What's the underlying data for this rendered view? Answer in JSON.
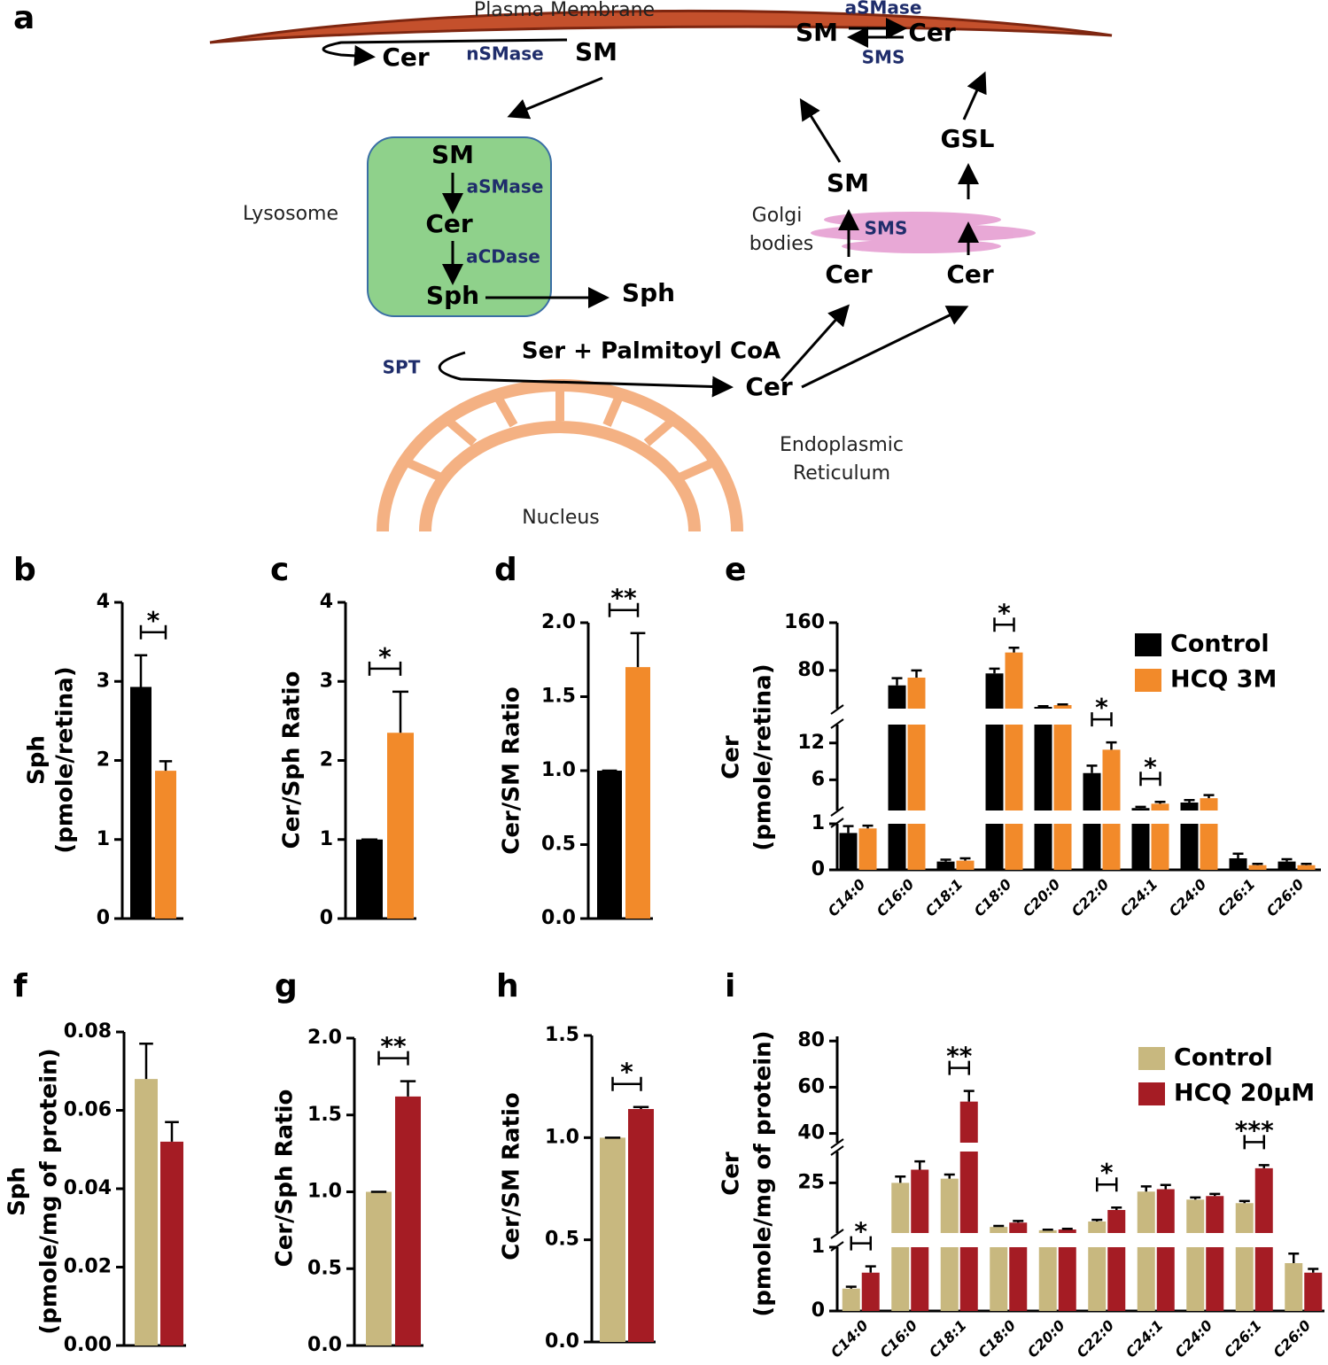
{
  "diagram": {
    "texts": [
      "a",
      "Plasma Membrane",
      "Cer",
      "nSMase",
      "SM",
      "aSMase",
      "SM",
      "Cer",
      "SMS",
      "SM",
      "aSMase",
      "Cer",
      "aCDase",
      "Sph",
      "Sph",
      "Lysosome",
      "GSL",
      "SM",
      "Golgi",
      "bodies",
      "SMS",
      "Cer",
      "Cer",
      "SPT",
      "Ser + Palmitoyl CoA",
      "Cer",
      "Endoplasmic",
      "Reticulum",
      "Nucleus"
    ]
  },
  "chart_data": [
    {
      "type": "bar",
      "panel": "b",
      "ylabel": [
        "Sph",
        "(pmole/retina)"
      ],
      "categories": [
        null,
        null
      ],
      "values": [
        2.93,
        1.87
      ],
      "errors": [
        0.4,
        0.12
      ],
      "colors": [
        "#000000",
        "#f28a2a"
      ],
      "ylim": [
        0,
        4
      ],
      "yticks": [
        0,
        1,
        2,
        3,
        4
      ],
      "significance": "*"
    },
    {
      "type": "bar",
      "panel": "c",
      "ylabel": [
        "Cer/Sph Ratio"
      ],
      "categories": [
        null,
        null
      ],
      "values": [
        1,
        2.35
      ],
      "errors": [
        0,
        0.52
      ],
      "colors": [
        "#000000",
        "#f28a2a"
      ],
      "ylim": [
        0,
        4
      ],
      "yticks": [
        0,
        1,
        2,
        3,
        4
      ],
      "significance": "*"
    },
    {
      "type": "bar",
      "panel": "d",
      "ylabel": [
        "Cer/SM Ratio"
      ],
      "categories": [
        null,
        null
      ],
      "values": [
        1,
        1.7
      ],
      "errors": [
        0,
        0.23
      ],
      "colors": [
        "#000000",
        "#f28a2a"
      ],
      "ylim": [
        0,
        2
      ],
      "yticks": [
        {
          "value": 0,
          "label": "0.0"
        },
        0.5,
        {
          "value": 1,
          "label": "1.0"
        },
        1.5,
        {
          "value": 2,
          "label": "2.0"
        }
      ],
      "significance": "**"
    },
    {
      "type": "bar",
      "panel": "e",
      "ylabel": [
        "Cer",
        "(pmole/retina)"
      ],
      "categories": [
        "C14:0",
        "C16:0",
        "C18:1",
        "C18:0",
        "C20:0",
        "C22:0",
        "C24:1",
        "C24:0",
        "C26:1",
        "C26:0"
      ],
      "series": [
        {
          "name": "Control",
          "color": "#000000",
          "values": [
            0.8,
            55,
            0.18,
            75,
            19,
            7.1,
            1.4,
            2.3,
            0.25,
            0.18
          ],
          "errors": [
            0.15,
            12,
            0.04,
            8,
            1,
            1.2,
            0.2,
            0.4,
            0.1,
            0.05
          ]
        },
        {
          "name": "HCQ 3M",
          "color": "#f28a2a",
          "values": [
            0.9,
            68,
            0.2,
            110,
            22,
            10.9,
            2.1,
            3.0,
            0.1,
            0.1
          ],
          "errors": [
            0.06,
            12,
            0.05,
            8,
            1,
            1.2,
            0.3,
            0.5,
            0.03,
            0.03
          ]
        }
      ],
      "segments": [
        {
          "ylim": [
            0,
            1
          ],
          "yticks": [
            0,
            1
          ]
        },
        {
          "ylim": [
            1,
            15
          ],
          "yticks": [
            6,
            12
          ]
        },
        {
          "ylim": [
            16,
            160
          ],
          "yticks": [
            80,
            160
          ]
        }
      ],
      "significance": [
        null,
        null,
        null,
        "*",
        null,
        "*",
        "*",
        null,
        null,
        null
      ],
      "legend": "upper right"
    },
    {
      "type": "bar",
      "panel": "f",
      "ylabel": [
        "Sph",
        "(pmole/mg of protein)"
      ],
      "categories": [
        null,
        null
      ],
      "values": [
        0.068,
        0.052
      ],
      "errors": [
        0.009,
        0.005
      ],
      "colors": [
        "#c8b87f",
        "#a51c24"
      ],
      "ylim": [
        0,
        0.08
      ],
      "yticks": [
        {
          "value": 0,
          "label": "0.00"
        },
        {
          "value": 0.02,
          "label": "0.02"
        },
        {
          "value": 0.04,
          "label": "0.04"
        },
        {
          "value": 0.06,
          "label": "0.06"
        },
        {
          "value": 0.08,
          "label": "0.08"
        }
      ]
    },
    {
      "type": "bar",
      "panel": "g",
      "ylabel": [
        "Cer/Sph Ratio"
      ],
      "categories": [
        null,
        null
      ],
      "values": [
        1,
        1.62
      ],
      "errors": [
        0,
        0.1
      ],
      "colors": [
        "#c8b87f",
        "#a51c24"
      ],
      "ylim": [
        0,
        2
      ],
      "yticks": [
        {
          "value": 0,
          "label": "0.0"
        },
        0.5,
        {
          "value": 1,
          "label": "1.0"
        },
        1.5,
        {
          "value": 2,
          "label": "2.0"
        }
      ],
      "significance": "**"
    },
    {
      "type": "bar",
      "panel": "h",
      "ylabel": [
        "Cer/SM Ratio"
      ],
      "categories": [
        null,
        null
      ],
      "values": [
        1,
        1.14
      ],
      "errors": [
        0,
        0.01
      ],
      "colors": [
        "#c8b87f",
        "#a51c24"
      ],
      "ylim": [
        0,
        1.5
      ],
      "yticks": [
        {
          "value": 0,
          "label": "0.0"
        },
        0.5,
        {
          "value": 1,
          "label": "1.0"
        },
        1.5
      ],
      "significance": "*"
    },
    {
      "type": "bar",
      "panel": "i",
      "ylabel": [
        "Cer",
        "(pmole/mg of protein)"
      ],
      "categories": [
        "C14:0",
        "C16:0",
        "C18:1",
        "C18:0",
        "C20:0",
        "C22:0",
        "C24:1",
        "C24:0",
        "C26:1",
        "C26:0"
      ],
      "series": [
        {
          "name": "Control",
          "color": "#c8b87f",
          "values": [
            0.35,
            25,
            27,
            3.9,
            2.3,
            6.5,
            20.8,
            17,
            15.3,
            0.75
          ],
          "errors": [
            0.03,
            3,
            2,
            0.5,
            0.3,
            0.8,
            2.5,
            1,
            1,
            0.15
          ]
        },
        {
          "name": "HCQ 20μM",
          "color": "#a51c24",
          "values": [
            0.6,
            31.3,
            53.8,
            6,
            2.7,
            12,
            22,
            18.7,
            32,
            0.6
          ],
          "errors": [
            0.1,
            4,
            4.6,
            0.8,
            0.3,
            1.2,
            2,
            1,
            1.5,
            0.06
          ]
        }
      ],
      "segments": [
        {
          "ylim": [
            0,
            1
          ],
          "yticks": [
            0,
            1
          ]
        },
        {
          "ylim": [
            1,
            40
          ],
          "yticks": [
            25
          ]
        },
        {
          "ylim": [
            36,
            82
          ],
          "yticks": [
            40,
            60,
            80
          ]
        }
      ],
      "significance": [
        "*",
        null,
        "**",
        null,
        null,
        "*",
        null,
        null,
        "***",
        null
      ],
      "legend": "upper right"
    }
  ]
}
